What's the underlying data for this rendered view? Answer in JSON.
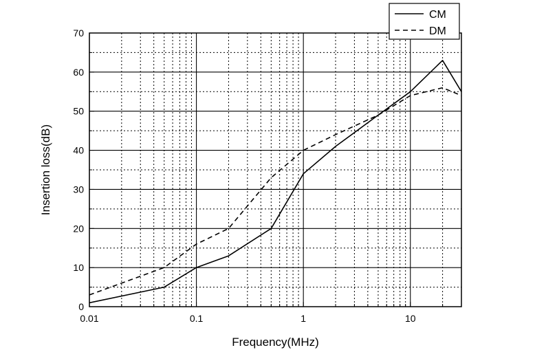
{
  "chart_data": {
    "type": "line",
    "title": "",
    "xlabel": "Frequency(MHz)",
    "ylabel": "Insertion loss(dB)",
    "x_scale": "log",
    "xlim": [
      0.01,
      30
    ],
    "ylim": [
      0,
      70
    ],
    "x_ticks": [
      0.01,
      0.1,
      1,
      10
    ],
    "x_tick_labels": [
      "0.01",
      "0.1",
      "1",
      "10"
    ],
    "y_ticks": [
      0,
      10,
      20,
      30,
      40,
      50,
      60,
      70
    ],
    "y_tick_labels": [
      "0",
      "10",
      "20",
      "30",
      "40",
      "50",
      "60",
      "70"
    ],
    "grid": true,
    "legend_position": "top-right",
    "series": [
      {
        "name": "CM",
        "style": "solid",
        "color": "#000000",
        "x": [
          0.01,
          0.05,
          0.1,
          0.2,
          0.5,
          1,
          2,
          5,
          10,
          20,
          30
        ],
        "y": [
          1,
          5,
          10,
          13,
          20,
          34,
          41,
          49,
          55,
          63,
          55
        ]
      },
      {
        "name": "DM",
        "style": "dashed",
        "color": "#000000",
        "x": [
          0.01,
          0.05,
          0.1,
          0.2,
          0.5,
          1,
          2,
          5,
          10,
          20,
          30
        ],
        "y": [
          3,
          10,
          16,
          20,
          33,
          40,
          44,
          49,
          54,
          56,
          54
        ]
      }
    ]
  }
}
